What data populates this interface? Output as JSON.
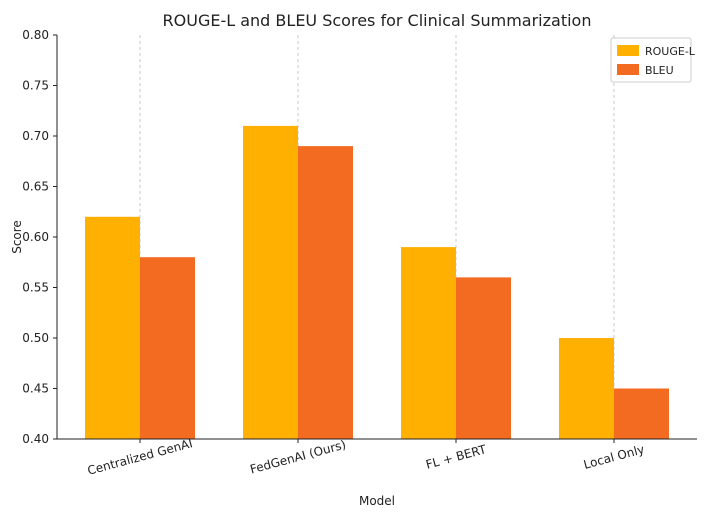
{
  "chart_data": {
    "type": "bar",
    "title": "ROUGE-L and BLEU Scores for Clinical Summarization",
    "xlabel": "Model",
    "ylabel": "Score",
    "categories": [
      "Centralized GenAI",
      "FedGenAI (Ours)",
      "FL + BERT",
      "Local Only"
    ],
    "series": [
      {
        "name": "ROUGE-L",
        "values": [
          0.62,
          0.71,
          0.59,
          0.5
        ],
        "color": "#FFB000"
      },
      {
        "name": "BLEU",
        "values": [
          0.58,
          0.69,
          0.56,
          0.45
        ],
        "color": "#F26B21"
      }
    ],
    "ylim": [
      0.4,
      0.8
    ],
    "yticks": [
      "0.40",
      "0.45",
      "0.50",
      "0.55",
      "0.60",
      "0.65",
      "0.70",
      "0.75",
      "0.80"
    ],
    "grid": "x-dashed",
    "legend_position": "top-right"
  }
}
